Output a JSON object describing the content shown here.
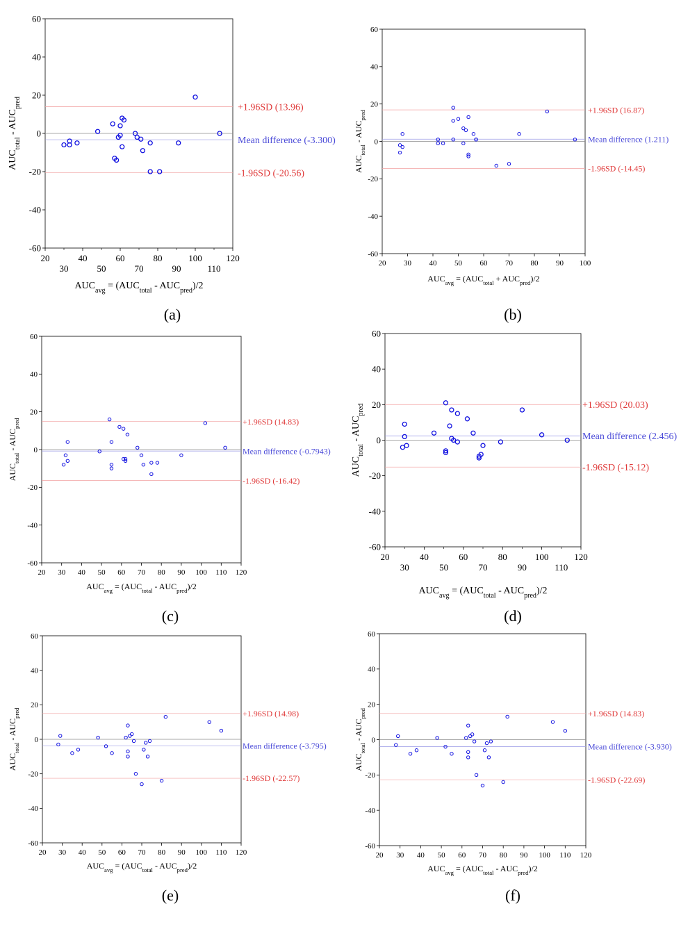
{
  "figure": {
    "captions": [
      "(a)",
      "(b)",
      "(c)",
      "(d)",
      "(e)",
      "(f)"
    ]
  },
  "colors": {
    "points": "#1010e0",
    "mean_label": "#4a4ad8",
    "sd_label": "#e03a3a",
    "mean_line": "#9a9ae6",
    "sd_line": "#f2a0a0",
    "zero_line": "#8c8c8c",
    "axis": "#000000"
  },
  "chart_data": [
    {
      "id": "a",
      "type": "scatter",
      "title": "",
      "ylabel": {
        "main": "AUC",
        "sub1": "total",
        "mid": " - AUC",
        "sub2": "pred"
      },
      "xlabel": {
        "main": "AUC",
        "sub1": "avg",
        "mid": " = (AUC",
        "sub2": "total",
        "mid2": " - AUC",
        "sub3": "pred",
        "end": ")/2"
      },
      "xlim": [
        20,
        120
      ],
      "ylim": [
        -60,
        60
      ],
      "xticks_major": [
        20,
        40,
        60,
        80,
        100,
        120
      ],
      "xticks_minor": [
        30,
        50,
        70,
        90,
        110
      ],
      "yticks": [
        -60,
        -40,
        -20,
        0,
        20,
        40,
        60
      ],
      "upper_sd": 13.96,
      "mean": -3.3,
      "lower_sd": -20.56,
      "upper_label": "+1.96SD (13.96)",
      "mean_label": "Mean difference (-3.300)",
      "lower_label": "-1.96SD (-20.56)",
      "x": [
        30,
        33,
        33,
        37,
        48,
        56,
        57,
        58,
        59,
        60,
        60,
        61,
        61,
        62,
        68,
        69,
        71,
        72,
        76,
        76,
        81,
        91,
        100,
        113
      ],
      "y": [
        -6,
        -4,
        -6,
        -5,
        1,
        5,
        -13,
        -14,
        -2,
        4,
        -1,
        8,
        -7,
        7,
        0,
        -2,
        -3,
        -9,
        -5,
        -20,
        -20,
        -5,
        19,
        0
      ]
    },
    {
      "id": "b",
      "type": "scatter",
      "title": "",
      "ylabel": {
        "main": "AUC",
        "sub1": "total",
        "mid": " - AUC",
        "sub2": "pred"
      },
      "xlabel": {
        "main": "AUC",
        "sub1": "avg",
        "mid": " = (AUC",
        "sub2": "total",
        "mid2": " + AUC",
        "sub3": "pred",
        "end": ")/2"
      },
      "xlim": [
        20,
        100
      ],
      "ylim": [
        -60,
        60
      ],
      "xticks_major": [
        20,
        30,
        40,
        50,
        60,
        70,
        80,
        90,
        100
      ],
      "xticks_minor": [],
      "yticks": [
        -60,
        -40,
        -20,
        0,
        20,
        40,
        60
      ],
      "upper_sd": 16.87,
      "mean": 1.211,
      "lower_sd": -14.45,
      "upper_label": "+1.96SD (16.87)",
      "mean_label": "Mean difference (1.211)",
      "lower_label": "-1.96SD (-14.45)",
      "x": [
        27,
        27,
        28,
        28,
        42,
        42,
        44,
        48,
        48,
        48,
        50,
        52,
        52,
        53,
        54,
        54,
        54,
        56,
        57,
        57,
        65,
        70,
        74,
        85,
        96
      ],
      "y": [
        -6,
        -2,
        4,
        -3,
        1,
        -1,
        -1,
        18,
        11,
        1,
        12,
        7,
        -1,
        6,
        -7,
        -8,
        13,
        4,
        1,
        1,
        -13,
        -12,
        4,
        16,
        1
      ]
    },
    {
      "id": "c",
      "type": "scatter",
      "title": "",
      "ylabel": {
        "main": "AUC",
        "sub1": "total",
        "mid": " - AUC",
        "sub2": "pred"
      },
      "xlabel": {
        "main": "AUC",
        "sub1": "avg",
        "mid": " = (AUC",
        "sub2": "total",
        "mid2": " - AUC",
        "sub3": "pred",
        "end": ")/2"
      },
      "xlim": [
        20,
        120
      ],
      "ylim": [
        -60,
        60
      ],
      "xticks_major": [
        20,
        30,
        40,
        50,
        60,
        70,
        80,
        90,
        100,
        110,
        120
      ],
      "xticks_minor": [],
      "yticks": [
        -60,
        -40,
        -20,
        0,
        20,
        40,
        60
      ],
      "upper_sd": 14.83,
      "mean": -0.7943,
      "lower_sd": -16.42,
      "upper_label": "+1.96SD (14.83)",
      "mean_label": "Mean difference (-0.7943)",
      "lower_label": "-1.96SD (-16.42)",
      "x": [
        31,
        32,
        33,
        33,
        49,
        54,
        55,
        55,
        55,
        59,
        61,
        61,
        62,
        62,
        63,
        68,
        70,
        71,
        75,
        75,
        78,
        90,
        102,
        112
      ],
      "y": [
        -8,
        -3,
        4,
        -6,
        -1,
        16,
        -10,
        -8,
        4,
        12,
        11,
        -5,
        -6,
        -5,
        8,
        1,
        -3,
        -8,
        -7,
        -13,
        -7,
        -3,
        14,
        1
      ]
    },
    {
      "id": "d",
      "type": "scatter",
      "title": "",
      "ylabel": {
        "main": "AUC",
        "sub1": "total",
        "mid": " - AUC",
        "sub2": "pred"
      },
      "xlabel": {
        "main": "AUC",
        "sub1": "avg",
        "mid": " = (AUC",
        "sub2": "total",
        "mid2": " - AUC",
        "sub3": "pred",
        "end": ")/2"
      },
      "xlim": [
        20,
        120
      ],
      "ylim": [
        -60,
        60
      ],
      "xticks_major": [
        20,
        40,
        60,
        80,
        100,
        120
      ],
      "xticks_minor": [
        30,
        50,
        70,
        90,
        110
      ],
      "yticks": [
        -60,
        -40,
        -20,
        0,
        20,
        40,
        60
      ],
      "upper_sd": 20.03,
      "mean": 2.456,
      "lower_sd": -15.12,
      "upper_label": "+1.96SD (20.03)",
      "mean_label": "Mean difference (2.456)",
      "lower_label": "-1.96SD (-15.12)",
      "x": [
        29,
        30,
        30,
        31,
        45,
        51,
        51,
        51,
        53,
        54,
        54,
        55,
        57,
        57,
        62,
        65,
        68,
        68,
        69,
        70,
        79,
        90,
        100,
        113
      ],
      "y": [
        -4,
        2,
        9,
        -3,
        4,
        21,
        -6,
        -7,
        8,
        17,
        1,
        0,
        15,
        -1,
        12,
        4,
        -10,
        -9,
        -8,
        -3,
        -1,
        17,
        3,
        0
      ]
    },
    {
      "id": "e",
      "type": "scatter",
      "title": "",
      "ylabel": {
        "main": "AUC",
        "sub1": "total",
        "mid": " - AUC",
        "sub2": "pred"
      },
      "xlabel": {
        "main": "AUC",
        "sub1": "avg",
        "mid": " = (AUC",
        "sub2": "total",
        "mid2": " - AUC",
        "sub3": "pred",
        "end": ")/2"
      },
      "xlim": [
        20,
        120
      ],
      "ylim": [
        -60,
        60
      ],
      "xticks_major": [
        20,
        30,
        40,
        50,
        60,
        70,
        80,
        90,
        100,
        110,
        120
      ],
      "xticks_minor": [],
      "yticks": [
        -60,
        -40,
        -20,
        0,
        20,
        40,
        60
      ],
      "upper_sd": 14.98,
      "mean": -3.795,
      "lower_sd": -22.57,
      "upper_label": "+1.96SD (14.98)",
      "mean_label": "Mean difference (-3.795)",
      "lower_label": "-1.96SD (-22.57)",
      "x": [
        28,
        29,
        35,
        38,
        48,
        52,
        55,
        62,
        63,
        63,
        63,
        64,
        65,
        66,
        67,
        70,
        71,
        72,
        73,
        74,
        80,
        82,
        104,
        110
      ],
      "y": [
        -3,
        2,
        -8,
        -6,
        1,
        -4,
        -8,
        1,
        8,
        -7,
        -10,
        2,
        3,
        -1,
        -20,
        -26,
        -6,
        -2,
        -10,
        -1,
        -24,
        13,
        10,
        5
      ]
    },
    {
      "id": "f",
      "type": "scatter",
      "title": "",
      "ylabel": {
        "main": "AUC",
        "sub1": "total",
        "mid": " - AUC",
        "sub2": "pred"
      },
      "xlabel": {
        "main": "AUC",
        "sub1": "avg",
        "mid": " = (AUC",
        "sub2": "total",
        "mid2": " - AUC",
        "sub3": "pred",
        "end": ")/2"
      },
      "xlim": [
        20,
        120
      ],
      "ylim": [
        -60,
        60
      ],
      "xticks_major": [
        20,
        30,
        40,
        50,
        60,
        70,
        80,
        90,
        100,
        110,
        120
      ],
      "xticks_minor": [],
      "yticks": [
        -60,
        -40,
        -20,
        0,
        20,
        40,
        60
      ],
      "upper_sd": 14.83,
      "mean": -3.93,
      "lower_sd": -22.69,
      "upper_label": "+1.96SD (14.83)",
      "mean_label": "Mean difference (-3.930)",
      "lower_label": "-1.96SD (-22.69)",
      "x": [
        28,
        29,
        35,
        38,
        48,
        52,
        55,
        62,
        63,
        63,
        63,
        64,
        65,
        66,
        67,
        70,
        71,
        72,
        73,
        74,
        80,
        82,
        104,
        110
      ],
      "y": [
        -3,
        2,
        -8,
        -6,
        1,
        -4,
        -8,
        1,
        8,
        -7,
        -10,
        2,
        3,
        -1,
        -20,
        -26,
        -6,
        -2,
        -10,
        -1,
        -24,
        13,
        10,
        5
      ]
    }
  ]
}
